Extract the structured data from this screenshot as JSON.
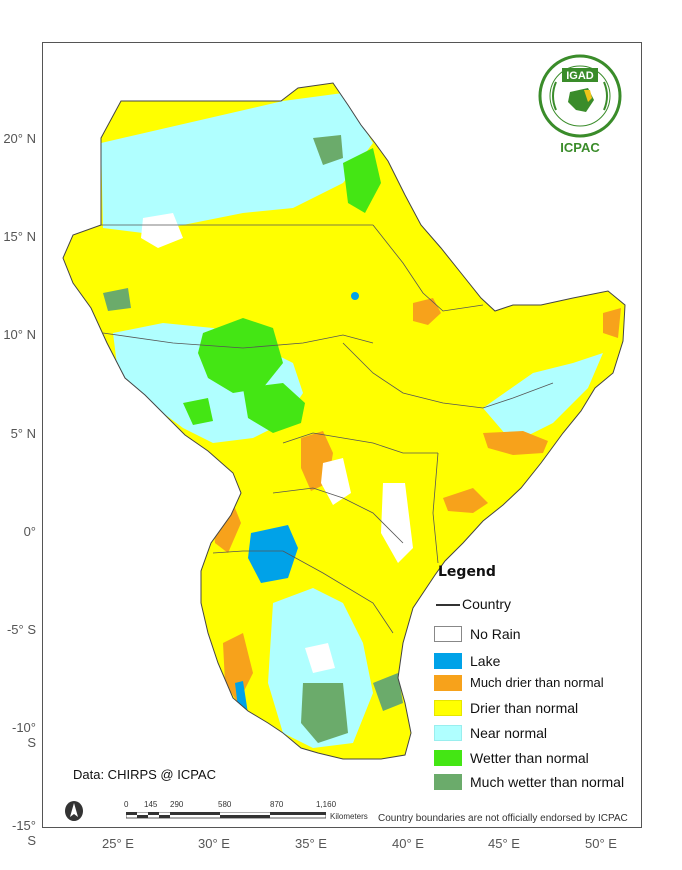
{
  "map": {
    "latitude_labels": [
      "20° N",
      "15° N",
      "10° N",
      "5° N",
      "0°",
      "-5° S",
      "-10° S",
      "-15° S"
    ],
    "longitude_labels": [
      "25° E",
      "30° E",
      "35° E",
      "40° E",
      "45° E",
      "50° E"
    ],
    "legend": {
      "title": "Legend",
      "country_label": "Country",
      "items": [
        {
          "label": "No Rain",
          "color": "#ffffff"
        },
        {
          "label": "Lake",
          "color": "#00a2e8"
        },
        {
          "label": "Much drier than normal",
          "color": "#f7a21b"
        },
        {
          "label": "Drier than normal",
          "color": "#ffff00"
        },
        {
          "label": "Near normal",
          "color": "#b0ffff"
        },
        {
          "label": "Wetter than normal",
          "color": "#44e614"
        },
        {
          "label": "Much wetter than normal",
          "color": "#6bab6b"
        }
      ]
    },
    "credit": "Data: CHIRPS @ ICPAC",
    "disclaimer": "Country boundaries are not officially endorsed by ICPAC",
    "scale": {
      "ticks": [
        "0",
        "145",
        "290",
        "580",
        "870",
        "1,160"
      ],
      "unit": "Kilometers"
    },
    "logo": {
      "acronym": "IGAD",
      "label": "ICPAC"
    }
  }
}
